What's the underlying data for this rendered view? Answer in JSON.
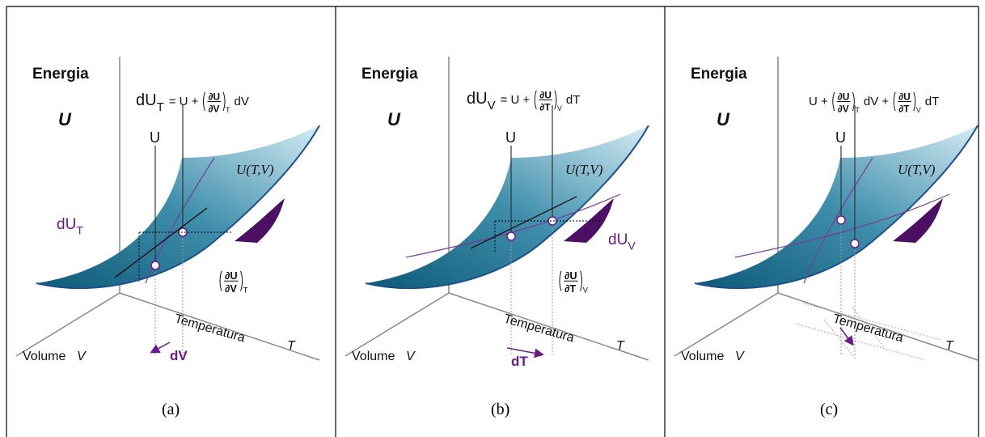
{
  "panels": [
    {
      "caption": "(a)",
      "energy_label": "Energia",
      "energy_symbol": "U",
      "formula": [
        {
          "text": "dU",
          "sub": "T"
        },
        {
          "text": "= U +"
        },
        {
          "num": "∂U",
          "den": "∂V",
          "sub": "T"
        },
        {
          "text": "dV"
        }
      ],
      "point_label": "U",
      "surface_label": "U(T,V)",
      "increment": {
        "text": "dU",
        "sub": "T"
      },
      "derivative": {
        "num": "∂U",
        "den": "∂V",
        "sub": "T"
      },
      "volume_label": "Volume",
      "volume_symbol": "V",
      "temperature_label": "Temperatura",
      "temperature_symbol": "T",
      "step_label": "dV"
    },
    {
      "caption": "(b)",
      "energy_label": "Energia",
      "energy_symbol": "U",
      "formula": [
        {
          "text": "dU",
          "sub": "V"
        },
        {
          "text": "= U +"
        },
        {
          "num": "∂U",
          "den": "∂T",
          "sub": "V"
        },
        {
          "text": "dT"
        }
      ],
      "point_label": "U",
      "surface_label": "U(T,V)",
      "increment": {
        "text": "dU",
        "sub": "V"
      },
      "derivative": {
        "num": "∂U",
        "den": "∂T",
        "sub": "V"
      },
      "volume_label": "Volume",
      "volume_symbol": "V",
      "temperature_label": "Temperatura",
      "temperature_symbol": "T",
      "step_label": "dT"
    },
    {
      "caption": "(c)",
      "energy_label": "Energia",
      "energy_symbol": "U",
      "formula": [
        {
          "text": "U +"
        },
        {
          "num": "∂U",
          "den": "∂V",
          "sub": "T"
        },
        {
          "text": "dV +"
        },
        {
          "num": "∂U",
          "den": "∂T",
          "sub": "V"
        },
        {
          "text": "dT"
        }
      ],
      "point_label": "U",
      "surface_label": "U(T,V)",
      "volume_label": "Volume",
      "volume_symbol": "V",
      "temperature_label": "Temperatura",
      "temperature_symbol": "T"
    }
  ]
}
